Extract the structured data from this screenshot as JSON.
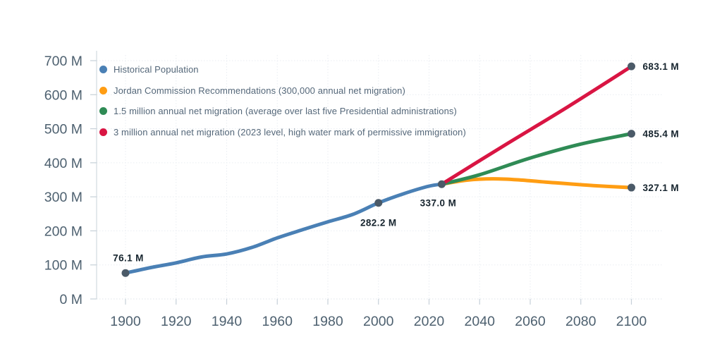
{
  "chart_data": {
    "type": "line",
    "title": "",
    "xlabel": "",
    "ylabel": "",
    "x_ticks": [
      1900,
      1920,
      1940,
      1960,
      1980,
      2000,
      2020,
      2040,
      2060,
      2080,
      2100
    ],
    "y_ticks": [
      {
        "value": 0,
        "label": "0 M"
      },
      {
        "value": 100,
        "label": "100 M"
      },
      {
        "value": 200,
        "label": "200 M"
      },
      {
        "value": 300,
        "label": "300 M"
      },
      {
        "value": 400,
        "label": "400 M"
      },
      {
        "value": 500,
        "label": "500 M"
      },
      {
        "value": 600,
        "label": "600 M"
      },
      {
        "value": 700,
        "label": "700 M"
      }
    ],
    "xlim": [
      1889,
      2113
    ],
    "ylim": [
      0,
      700
    ],
    "grid": true,
    "legend_position": "top-left-inside",
    "series": [
      {
        "name": "Historical Population",
        "color": "#4a80b5",
        "points": [
          [
            1900,
            76.1
          ],
          [
            1910,
            92.2
          ],
          [
            1920,
            106.0
          ],
          [
            1930,
            123.2
          ],
          [
            1940,
            132.2
          ],
          [
            1950,
            151.3
          ],
          [
            1960,
            179.3
          ],
          [
            1970,
            203.3
          ],
          [
            1980,
            226.5
          ],
          [
            1990,
            248.7
          ],
          [
            2000,
            282.2
          ],
          [
            2010,
            309.3
          ],
          [
            2020,
            331.4
          ],
          [
            2025,
            337.0
          ]
        ]
      },
      {
        "name": "Jordan Commission Recommendations (300,000 annual net migration)",
        "color": "#ff9d13",
        "points": [
          [
            2025,
            337.0
          ],
          [
            2035,
            349
          ],
          [
            2045,
            353
          ],
          [
            2055,
            350
          ],
          [
            2070,
            341
          ],
          [
            2085,
            333
          ],
          [
            2100,
            327.1
          ]
        ]
      },
      {
        "name": "1.5 million annual net migration (average over last five Presidential administrations)",
        "color": "#2f8b55",
        "points": [
          [
            2025,
            337.0
          ],
          [
            2040,
            365
          ],
          [
            2060,
            414
          ],
          [
            2080,
            455
          ],
          [
            2100,
            485.4
          ]
        ]
      },
      {
        "name": "3 million annual net migration (2023 level, high water mark of permissive immigration)",
        "color": "#d91543",
        "points": [
          [
            2025,
            337.0
          ],
          [
            2050,
            452
          ],
          [
            2075,
            565
          ],
          [
            2100,
            683.1
          ]
        ]
      }
    ],
    "annotations": [
      {
        "label": "76.1 M",
        "year": 1900,
        "value": 76.1,
        "placement": "above"
      },
      {
        "label": "282.2 M",
        "year": 2000,
        "value": 282.2,
        "placement": "below"
      },
      {
        "label": "337.0 M",
        "year": 2025,
        "value": 337.0,
        "placement": "below-left"
      },
      {
        "label": "683.1 M",
        "year": 2100,
        "value": 683.1,
        "placement": "right"
      },
      {
        "label": "485.4 M",
        "year": 2100,
        "value": 485.4,
        "placement": "right"
      },
      {
        "label": "327.1 M",
        "year": 2100,
        "value": 327.1,
        "placement": "right"
      }
    ],
    "colors": {
      "axis_text": "#4e6170",
      "legend_text": "#546779",
      "annotation_text": "#16242e",
      "marker": "#4b5a68",
      "grid": "#e9edf2",
      "axis_line": "#d3dae0",
      "tick": "#c6d0d8"
    }
  }
}
